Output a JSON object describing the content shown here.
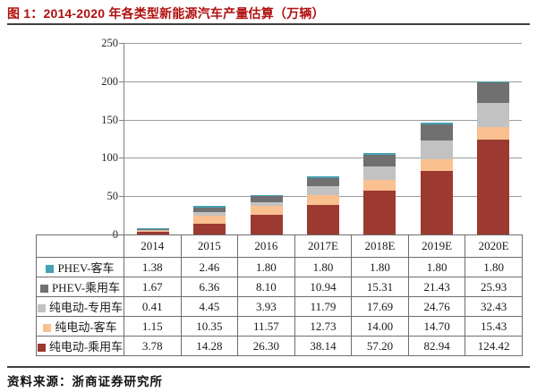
{
  "figure": {
    "title": "图 1：2014-2020 年各类型新能源汽车产量估算（万辆）",
    "source": "资料来源：浙商证券研究所"
  },
  "colors": {
    "title_red": "#B01010",
    "rule_dark": "#3F3F3F",
    "axis_gray": "#808080",
    "gridline_gray": "#9B9B9B",
    "table_border": "#6E6E6E"
  },
  "chart_data": {
    "type": "bar",
    "stacked": true,
    "title": "图 1：2014-2020 年各类型新能源汽车产量估算（万辆）",
    "unit": "万辆",
    "categories": [
      "2014",
      "2015",
      "2016",
      "2017E",
      "2018E",
      "2019E",
      "2020E"
    ],
    "series": [
      {
        "name": "PHEV-客车",
        "color": "#46A1B2",
        "values": [
          1.38,
          2.46,
          1.8,
          1.8,
          1.8,
          1.8,
          1.8
        ]
      },
      {
        "name": "PHEV-乘用车",
        "color": "#707070",
        "values": [
          1.67,
          6.36,
          8.1,
          10.94,
          15.31,
          21.43,
          25.93
        ]
      },
      {
        "name": "纯电动-专用车",
        "color": "#C2C2C2",
        "values": [
          0.41,
          4.45,
          3.93,
          11.79,
          17.69,
          24.76,
          32.43
        ]
      },
      {
        "name": "纯电动-客车",
        "color": "#FAC090",
        "values": [
          1.15,
          10.35,
          11.57,
          12.73,
          14.0,
          14.7,
          15.43
        ]
      },
      {
        "name": "纯电动-乘用车",
        "color": "#9C3A32",
        "values": [
          3.78,
          14.28,
          26.3,
          38.14,
          57.2,
          82.94,
          124.42
        ]
      }
    ],
    "stack_order_bottom_to_top": [
      "纯电动-乘用车",
      "纯电动-客车",
      "纯电动-专用车",
      "PHEV-乘用车",
      "PHEV-客车"
    ],
    "ylim": [
      0,
      250
    ],
    "yticks": [
      0,
      50,
      100,
      150,
      200,
      250
    ],
    "grid": true,
    "legend_position": "table-left",
    "value_decimals": 2
  }
}
